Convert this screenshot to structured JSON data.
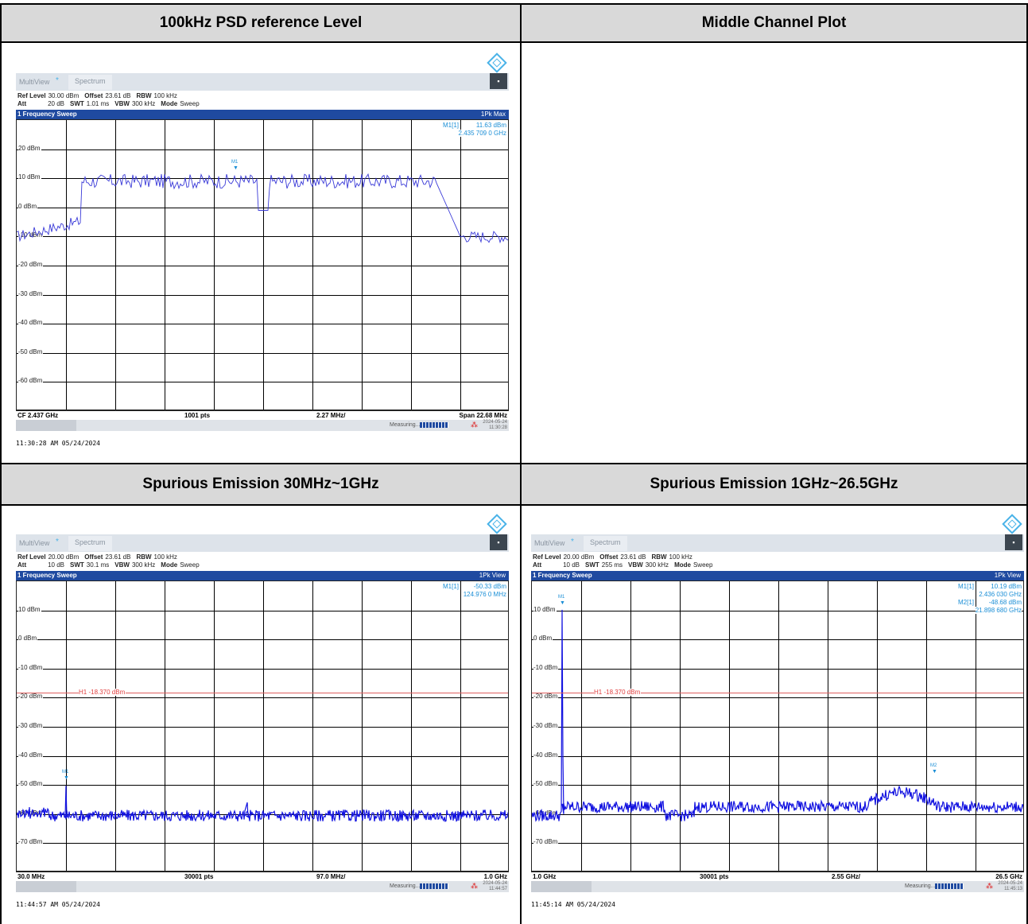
{
  "table": {
    "headers": [
      "100kHz PSD reference Level",
      "Middle Channel Plot",
      "Spurious Emission 30MHz~1GHz",
      "Spurious Emission 1GHz~26.5GHz"
    ]
  },
  "plots": [
    {
      "tab_multiview": "MultiView",
      "tab_spectrum": "Spectrum",
      "ref_level_label": "Ref Level",
      "ref_level": "30.00 dBm",
      "offset_label": "Offset",
      "offset": "23.61 dB",
      "rbw_label": "RBW",
      "rbw": "100 kHz",
      "att_label": "Att",
      "att": "20 dB",
      "swt_label": "SWT",
      "swt": "1.01 ms",
      "vbw_label": "VBW",
      "vbw": "300 kHz",
      "mode_label": "Mode",
      "mode": "Sweep",
      "sweep_title": "1 Frequency Sweep",
      "trace_mode": "1Pk Max",
      "marker_lines": [
        [
          "M1[1]",
          "11.63 dBm"
        ],
        [
          "",
          "2.435 709 0 GHz"
        ]
      ],
      "y_labels": [
        "20 dBm",
        "10 dBm",
        "0 dBm",
        "-10 dBm",
        "-20 dBm",
        "-30 dBm",
        "-40 dBm",
        "-50 dBm",
        "-60 dBm"
      ],
      "bottom_left": "CF 2.437 GHz",
      "bottom_pts": "1001 pts",
      "bottom_div": "2.27 MHz/",
      "bottom_right": "Span 22.68 MHz",
      "measuring": "Measuring...",
      "status_date": "2024-05-24",
      "status_time": "11:30:28",
      "timestamp": "11:30:28 AM  05/24/2024",
      "marker_tag": "M1",
      "trace_color": "#3a3ad8"
    },
    {
      "tab_multiview": "MultiView",
      "tab_spectrum": "Spectrum",
      "ref_level_label": "Ref Level",
      "ref_level": "20.00 dBm",
      "offset_label": "Offset",
      "offset": "23.61 dB",
      "rbw_label": "RBW",
      "rbw": "100 kHz",
      "att_label": "Att",
      "att": "10 dB",
      "swt_label": "SWT",
      "swt": "30.1 ms",
      "vbw_label": "VBW",
      "vbw": "300 kHz",
      "mode_label": "Mode",
      "mode": "Sweep",
      "sweep_title": "1 Frequency Sweep",
      "trace_mode": "1Pk View",
      "marker_lines": [
        [
          "M1[1]",
          "-50.33 dBm"
        ],
        [
          "",
          "124.976 0 MHz"
        ]
      ],
      "y_labels": [
        "10 dBm",
        "0 dBm",
        "-10 dBm",
        "-20 dBm",
        "-30 dBm",
        "-40 dBm",
        "-50 dBm",
        "-60 dBm",
        "-70 dBm"
      ],
      "h1_label": "H1 -18.370 dBm",
      "bottom_left": "30.0 MHz",
      "bottom_pts": "30001 pts",
      "bottom_div": "97.0 MHz/",
      "bottom_right": "1.0 GHz",
      "measuring": "Measuring...",
      "status_date": "2024-05-24",
      "status_time": "11:44:57",
      "timestamp": "11:44:57 AM  05/24/2024",
      "marker_tag": "M1",
      "trace_color": "#1212e0"
    },
    {
      "tab_multiview": "MultiView",
      "tab_spectrum": "Spectrum",
      "ref_level_label": "Ref Level",
      "ref_level": "20.00 dBm",
      "offset_label": "Offset",
      "offset": "23.61 dB",
      "rbw_label": "RBW",
      "rbw": "100 kHz",
      "att_label": "Att",
      "att": "10 dB",
      "swt_label": "SWT",
      "swt": "255 ms",
      "vbw_label": "VBW",
      "vbw": "300 kHz",
      "mode_label": "Mode",
      "mode": "Sweep",
      "sweep_title": "1 Frequency Sweep",
      "trace_mode": "1Pk View",
      "marker_lines": [
        [
          "M1[1]",
          "10.19 dBm"
        ],
        [
          "",
          "2.436 030 GHz"
        ],
        [
          "M2[1]",
          "-48.68 dBm"
        ],
        [
          "",
          "21.898 680 GHz"
        ]
      ],
      "y_labels": [
        "10 dBm",
        "0 dBm",
        "-10 dBm",
        "-20 dBm",
        "-30 dBm",
        "-40 dBm",
        "-50 dBm",
        "-60 dBm",
        "-70 dBm"
      ],
      "h1_label": "H1 -18.370 dBm",
      "bottom_left": "1.0 GHz",
      "bottom_pts": "30001 pts",
      "bottom_div": "2.55 GHz/",
      "bottom_right": "26.5 GHz",
      "measuring": "Measuring...",
      "status_date": "2024-05-24",
      "status_time": "11:45:13",
      "timestamp": "11:45:14 AM  05/24/2024",
      "marker_tag": "M1",
      "marker_tag2": "M2",
      "trace_color": "#1212e0"
    }
  ]
}
